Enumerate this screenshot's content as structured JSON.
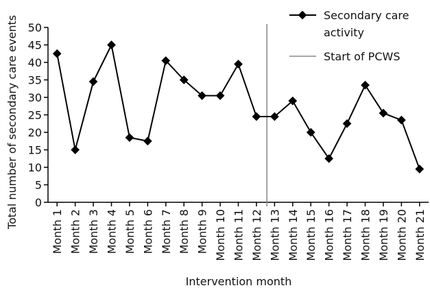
{
  "chart_data": {
    "type": "line",
    "title": "",
    "xlabel": "Intervention month",
    "ylabel": "Total number of secondary care events",
    "ylim": [
      0,
      50
    ],
    "yticks": [
      0,
      5,
      10,
      15,
      20,
      25,
      30,
      35,
      40,
      45,
      50
    ],
    "categories": [
      "Month 1",
      "Month 2",
      "Month 3",
      "Month 4",
      "Month 5",
      "Month 6",
      "Month 7",
      "Month 8",
      "Month 9",
      "Month 10",
      "Month 11",
      "Month 12",
      "Month 13",
      "Month 14",
      "Month 15",
      "Month 16",
      "Month 17",
      "Month 18",
      "Month 19",
      "Month 20",
      "Month 21"
    ],
    "series": [
      {
        "name": "Secondary care activity",
        "marker": "diamond",
        "color": "#000000",
        "values": [
          42.5,
          15,
          34.5,
          45,
          18.5,
          17.5,
          40.5,
          35,
          30.5,
          30.5,
          39.5,
          24.5,
          24.5,
          29,
          20,
          12.5,
          22.5,
          33.5,
          25.5,
          23.5,
          9.5
        ]
      }
    ],
    "annotations": [
      {
        "type": "vertical-line",
        "label": "Start of PCWS",
        "x_between": [
          "Month 12",
          "Month 13"
        ],
        "color": "#888888"
      }
    ],
    "legend": {
      "placement": "top-right",
      "entries": [
        {
          "label": "Secondary care activity",
          "kind": "series"
        },
        {
          "label": "Start of PCWS",
          "kind": "vertical-line"
        }
      ]
    },
    "grid": false
  }
}
